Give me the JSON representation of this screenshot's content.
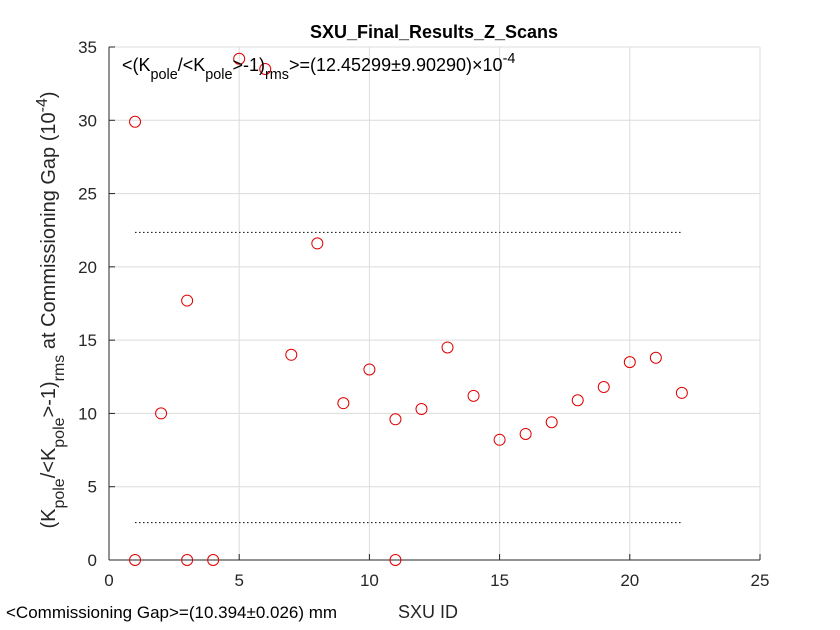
{
  "chart_data": {
    "type": "scatter",
    "title": "SXU_Final_Results_Z_Scans",
    "xlabel": "SXU ID",
    "ylabel": {
      "parts": [
        "(K",
        "pole",
        "/<K",
        "pole",
        ">-1)",
        "rms",
        " at Commissioning Gap (10",
        "-4",
        ")"
      ]
    },
    "annotation": {
      "parts": [
        "<(K",
        "pole",
        "/<K",
        "pole",
        ">-1)",
        "rms",
        ">=(12.45299±9.90290)×10",
        "-4"
      ]
    },
    "footnote": "<Commissioning Gap>=(10.394±0.026) mm",
    "xlim": [
      0,
      25
    ],
    "ylim": [
      0,
      35
    ],
    "xticks": [
      "0",
      "5",
      "10",
      "15",
      "20",
      "25"
    ],
    "yticks": [
      "0",
      "5",
      "10",
      "15",
      "20",
      "25",
      "30",
      "35"
    ],
    "grid": true,
    "marker_color": "#e00000",
    "points": {
      "x": [
        1,
        1,
        2,
        3,
        3,
        4,
        5,
        6,
        7,
        8,
        9,
        10,
        11,
        11,
        12,
        13,
        14,
        15,
        16,
        17,
        18,
        19,
        20,
        21,
        22
      ],
      "y": [
        29.9,
        0,
        10.0,
        17.7,
        0,
        0,
        34.2,
        33.5,
        14.0,
        21.6,
        10.7,
        13.0,
        9.6,
        0,
        10.3,
        14.5,
        11.2,
        8.2,
        8.6,
        9.4,
        10.9,
        11.8,
        13.5,
        13.8,
        11.4
      ]
    },
    "reference_lines": [
      {
        "y": 22.35,
        "x_start": 1,
        "x_end": 22,
        "style": "dotted"
      },
      {
        "y": 2.55,
        "x_start": 1,
        "x_end": 22,
        "style": "dotted"
      }
    ]
  }
}
